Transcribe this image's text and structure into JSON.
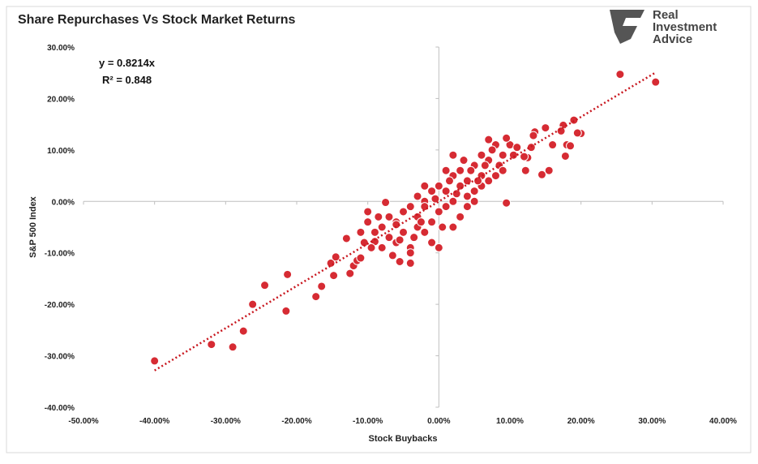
{
  "logo": [
    "Real",
    "Investment",
    "Advice"
  ],
  "chart_data": {
    "type": "scatter",
    "title": "Share Repurchases Vs Stock Market Returns",
    "xlabel": "Stock Buybacks",
    "ylabel": "S&P 500 Index",
    "annotations": [
      "y = 0.8214x",
      "R² = 0.848"
    ],
    "color": "#d62b33",
    "grid": false,
    "trendline": {
      "slope": 0.8214,
      "xrange": [
        -40,
        30.5
      ],
      "color": "#c8161e"
    },
    "xlim": [
      -50,
      40
    ],
    "ylim": [
      -40,
      30
    ],
    "xticks": [
      {
        "value": -50,
        "label": "-50.00%"
      },
      {
        "value": -40,
        "label": "-40.00%"
      },
      {
        "value": -30,
        "label": "-30.00%"
      },
      {
        "value": -20,
        "label": "-20.00%"
      },
      {
        "value": -10,
        "label": "-10.00%"
      },
      {
        "value": 0,
        "label": "0.00%"
      },
      {
        "value": 10,
        "label": "10.00%"
      },
      {
        "value": 20,
        "label": "20.00%"
      },
      {
        "value": 30,
        "label": "30.00%"
      },
      {
        "value": 40,
        "label": "40.00%"
      }
    ],
    "yticks": [
      {
        "value": -40,
        "label": "-40.00%"
      },
      {
        "value": -30,
        "label": "-30.00%"
      },
      {
        "value": -20,
        "label": "-20.00%"
      },
      {
        "value": -10,
        "label": "-10.00%"
      },
      {
        "value": 0,
        "label": "0.00%"
      },
      {
        "value": 10,
        "label": "10.00%"
      },
      {
        "value": 20,
        "label": "20.00%"
      },
      {
        "value": 30,
        "label": "30.00%"
      }
    ],
    "x": [
      -40,
      -32,
      -29,
      -27.5,
      -26.2,
      -24.5,
      -21.5,
      -21.3,
      -17.3,
      -16.5,
      -15.2,
      -14.8,
      -14.5,
      -12.5,
      -13,
      25.5,
      30.5,
      20,
      19.5,
      19,
      18,
      18.5,
      17.5,
      17.2,
      17.8,
      16,
      15.5,
      14.5,
      15,
      13.5,
      13.3,
      13,
      12.5,
      12,
      12.2,
      9.5,
      -7.5,
      -10,
      -10,
      -5.5,
      -9,
      -12,
      -11.5,
      -11,
      2,
      -9,
      -8,
      -8,
      -7,
      -7,
      -6,
      -6,
      -5,
      -5,
      -4,
      -4,
      -3,
      -3,
      -2,
      -2,
      -1,
      -1,
      0,
      0,
      1,
      1,
      2,
      2,
      3,
      3,
      4,
      4,
      5,
      5,
      6,
      6,
      7,
      7,
      8,
      8,
      9,
      10,
      -1,
      0,
      -3,
      -4,
      4,
      6,
      -6,
      -2,
      -9.5,
      -8.5,
      -5.5,
      -3.5,
      -2.5,
      -0.5,
      0.5,
      1.5,
      2.5,
      3.5,
      4.5,
      5.5,
      6.5,
      7.5,
      8.5,
      9,
      10.5,
      11,
      -10.5,
      -11,
      1,
      3,
      -2,
      -4,
      -6.5,
      2,
      5,
      7,
      9.5
    ],
    "y": [
      -31,
      -27.8,
      -28.3,
      -25.2,
      -20,
      -16.3,
      -21.3,
      -14.2,
      -18.5,
      -16.5,
      -12,
      -14.4,
      -10.8,
      -14,
      -7.2,
      24.7,
      23.2,
      13.2,
      13.3,
      15.8,
      11,
      10.8,
      14.8,
      13.7,
      8.8,
      11,
      6,
      5.2,
      14.3,
      13.5,
      12.8,
      10.5,
      8.5,
      8.7,
      6,
      -0.3,
      -0.2,
      -2,
      -4,
      -11.7,
      -7.8,
      -12.5,
      -11.5,
      -11,
      -5,
      -6,
      -9,
      -5,
      -7,
      -3,
      -8,
      -4,
      -2,
      -6,
      -9,
      -1,
      -5,
      -3,
      0,
      -6,
      -4,
      2,
      -2,
      3,
      -1,
      2,
      5,
      0,
      3,
      6,
      1,
      4,
      7,
      2,
      5,
      9,
      4,
      8,
      11,
      5,
      9,
      11,
      -8,
      -9,
      1,
      -10,
      -1,
      3,
      -4.5,
      -1,
      -9,
      -3,
      -7.5,
      -7,
      -4,
      0.5,
      -5,
      4,
      1.5,
      8,
      6,
      4,
      7,
      10,
      7,
      6,
      9,
      10.5,
      -8,
      -6,
      6,
      -3,
      3,
      -12,
      -10.5,
      9,
      0,
      12,
      12.3
    ]
  }
}
